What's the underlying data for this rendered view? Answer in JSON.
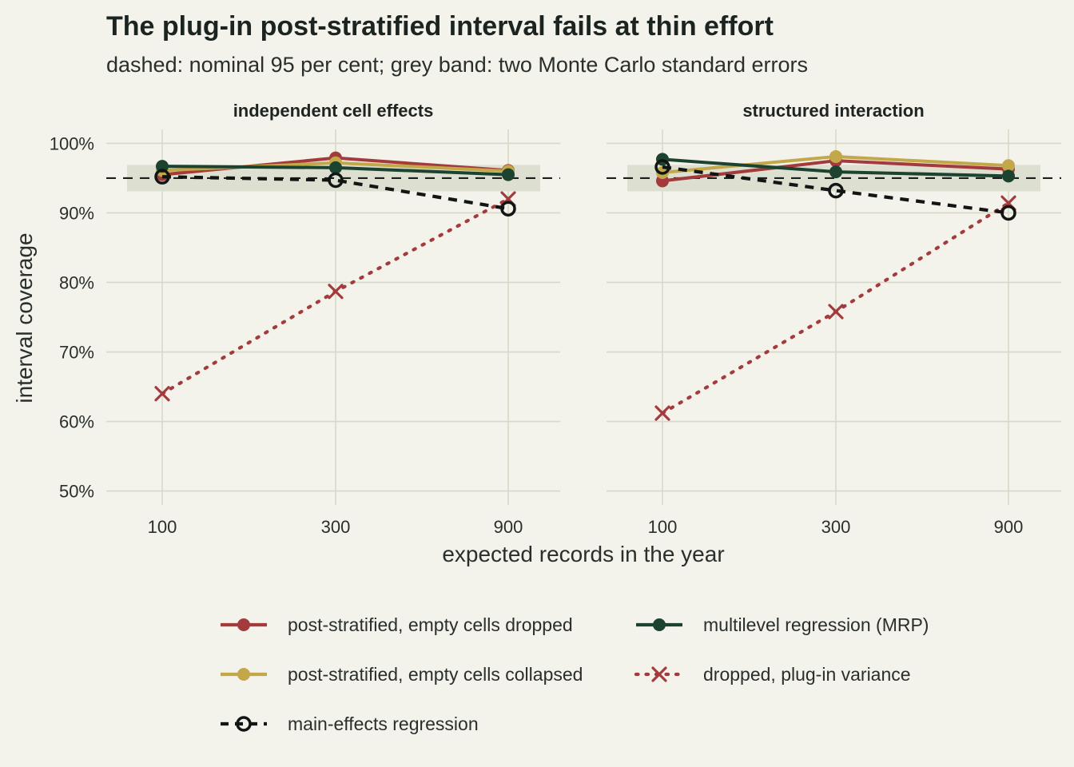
{
  "title": "The plug-in post-stratified interval fails at thin effort",
  "subtitle": "dashed: nominal 95 per cent; grey band: two Monte Carlo standard errors",
  "chart_data": {
    "type": "line",
    "xlabel": "expected records in the year",
    "ylabel": "interval coverage",
    "x": [
      100,
      300,
      900
    ],
    "x_tick_labels": [
      "100",
      "300",
      "900"
    ],
    "y_ticks": [
      0.5,
      0.6,
      0.7,
      0.8,
      0.9,
      1.0
    ],
    "y_tick_labels": [
      "50%",
      "60%",
      "70%",
      "80%",
      "90%",
      "100%"
    ],
    "ylim": [
      0.48,
      1.02
    ],
    "nominal": 0.95,
    "band": [
      0.931,
      0.969
    ],
    "grid": true,
    "legend_position": "bottom",
    "series_styles": [
      {
        "name": "post-stratified, empty cells dropped",
        "color": "#a33b3c",
        "dash": "solid",
        "marker": "dot"
      },
      {
        "name": "post-stratified, empty cells collapsed",
        "color": "#c3a84a",
        "dash": "solid",
        "marker": "dot"
      },
      {
        "name": "main-effects regression",
        "color": "#111513",
        "dash": "dashed",
        "marker": "open-circle"
      },
      {
        "name": "multilevel regression (MRP)",
        "color": "#1c4230",
        "dash": "solid",
        "marker": "dot"
      },
      {
        "name": "dropped, plug-in variance",
        "color": "#a33b3c",
        "dash": "dotted",
        "marker": "cross"
      }
    ],
    "panels": [
      {
        "title": "independent cell effects",
        "series": [
          {
            "name": "post-stratified, empty cells dropped",
            "values": [
              0.955,
              0.979,
              0.961
            ]
          },
          {
            "name": "post-stratified, empty cells collapsed",
            "values": [
              0.961,
              0.972,
              0.96
            ]
          },
          {
            "name": "multilevel regression (MRP)",
            "values": [
              0.967,
              0.965,
              0.955
            ]
          },
          {
            "name": "main-effects regression",
            "values": [
              0.952,
              0.947,
              0.906
            ]
          },
          {
            "name": "dropped, plug-in variance",
            "values": [
              0.64,
              0.787,
              0.92
            ]
          }
        ]
      },
      {
        "title": "structured interaction",
        "series": [
          {
            "name": "post-stratified, empty cells dropped",
            "values": [
              0.946,
              0.975,
              0.963
            ]
          },
          {
            "name": "post-stratified, empty cells collapsed",
            "values": [
              0.958,
              0.981,
              0.968
            ]
          },
          {
            "name": "multilevel regression (MRP)",
            "values": [
              0.977,
              0.959,
              0.953
            ]
          },
          {
            "name": "main-effects regression",
            "values": [
              0.966,
              0.932,
              0.9
            ]
          },
          {
            "name": "dropped, plug-in variance",
            "values": [
              0.612,
              0.758,
              0.914
            ]
          }
        ]
      }
    ]
  }
}
